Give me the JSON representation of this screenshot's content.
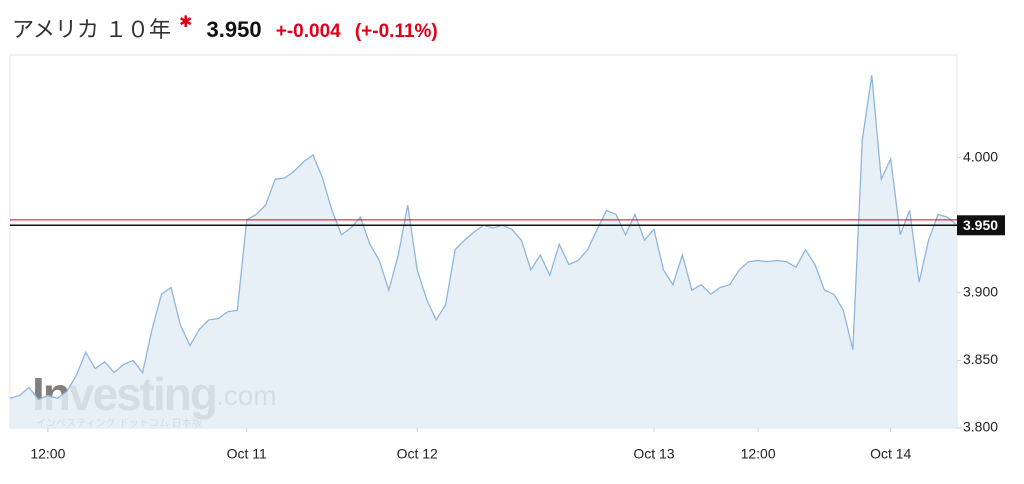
{
  "header": {
    "title": "アメリカ １０年",
    "change": "+-0.004",
    "change_percent": "(+-0.11%)"
  },
  "chart_data": {
    "type": "area",
    "color": "#8fb6dc",
    "fill": "#e4edf6",
    "x": [
      0,
      1,
      2,
      3,
      4,
      5,
      6,
      7,
      8,
      9,
      10,
      11,
      12,
      13,
      14,
      15,
      16,
      17,
      18,
      19,
      20,
      21,
      22,
      23,
      24,
      25,
      26,
      27,
      28,
      29,
      30,
      31,
      32,
      33,
      34,
      35,
      36,
      37,
      38,
      39,
      40,
      41,
      42,
      43,
      44,
      45,
      46,
      47,
      48,
      49,
      50,
      51,
      52,
      53,
      54,
      55,
      56,
      57,
      58,
      59,
      60,
      61,
      62,
      63,
      64,
      65,
      66,
      67,
      68,
      69,
      70,
      71,
      72,
      73,
      74,
      75,
      76,
      77,
      78,
      79,
      80,
      81,
      82,
      83,
      84,
      85,
      86,
      87,
      88,
      89,
      90,
      91,
      92,
      93,
      94,
      95,
      96,
      97,
      98,
      99,
      100
    ],
    "values": [
      3.822,
      3.824,
      3.83,
      3.821,
      3.824,
      3.822,
      3.827,
      3.839,
      3.856,
      3.844,
      3.849,
      3.841,
      3.847,
      3.85,
      3.841,
      3.873,
      3.899,
      3.904,
      3.876,
      3.861,
      3.873,
      3.88,
      3.881,
      3.886,
      3.887,
      3.954,
      3.958,
      3.965,
      3.984,
      3.985,
      3.99,
      3.997,
      4.002,
      3.985,
      3.961,
      3.943,
      3.948,
      3.956,
      3.936,
      3.924,
      3.902,
      3.928,
      3.965,
      3.917,
      3.895,
      3.88,
      3.891,
      3.932,
      3.939,
      3.945,
      3.95,
      3.948,
      3.95,
      3.947,
      3.939,
      3.917,
      3.928,
      3.913,
      3.936,
      3.921,
      3.924,
      3.932,
      3.947,
      3.961,
      3.958,
      3.943,
      3.958,
      3.939,
      3.947,
      3.917,
      3.906,
      3.928,
      3.902,
      3.906,
      3.899,
      3.904,
      3.906,
      3.917,
      3.923,
      3.924,
      3.923,
      3.924,
      3.923,
      3.919,
      3.932,
      3.921,
      3.902,
      3.899,
      3.887,
      3.858,
      4.013,
      4.061,
      3.984,
      3.999,
      3.943,
      3.961,
      3.908,
      3.939,
      3.958,
      3.956,
      3.95
    ],
    "xlim": [
      0,
      100
    ],
    "xticks": [
      {
        "value": 4,
        "label": "12:00"
      },
      {
        "value": 25,
        "label": "Oct 11"
      },
      {
        "value": 43,
        "label": "Oct 12"
      },
      {
        "value": 68,
        "label": "Oct 13"
      },
      {
        "value": 79,
        "label": "12:00"
      },
      {
        "value": 93,
        "label": "Oct 14"
      }
    ],
    "ylim": [
      3.8,
      4.076
    ],
    "yticks": [
      {
        "value": 3.8,
        "label": "3.800"
      },
      {
        "value": 3.85,
        "label": "3.850"
      },
      {
        "value": 3.9,
        "label": "3.900"
      },
      {
        "value": 4.0,
        "label": "4.000"
      }
    ],
    "last": {
      "value": 3.95,
      "label": "3.950"
    },
    "previous_close": 3.954,
    "watermark": "Investing",
    "watermark_suffix": ".com",
    "watermark_sub": "インベスティング·ドットコム 日本版"
  }
}
